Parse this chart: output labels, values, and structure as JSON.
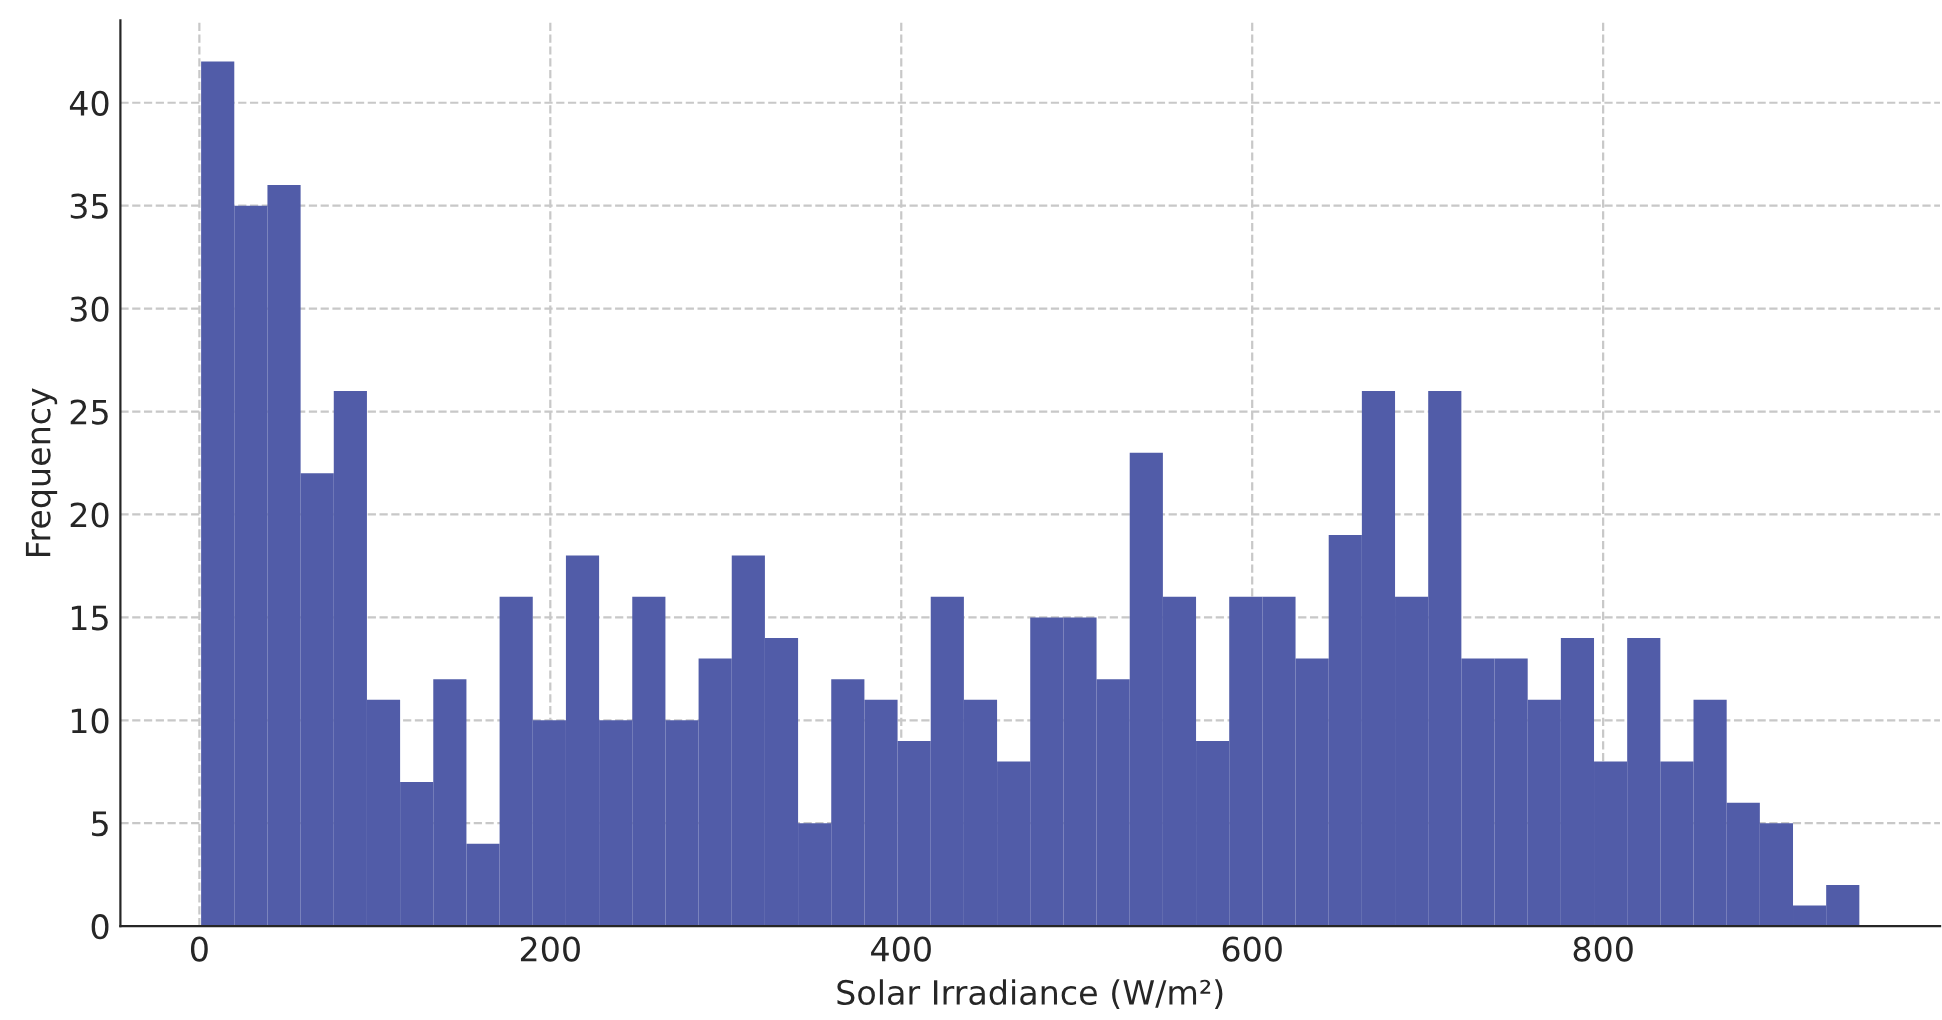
{
  "chart_data": {
    "type": "histogram",
    "xlabel": "Solar Irradiance (W/m²)",
    "ylabel": "Frequency",
    "color": "#515ca8",
    "bins": [
      1,
      19.9,
      38.8,
      57.7,
      76.6,
      95.5,
      114.4,
      133.3,
      152.2,
      171.1,
      190,
      208.9,
      227.8,
      246.7,
      265.6,
      284.5,
      303.4,
      322.3,
      341.2,
      360.1,
      379,
      397.9,
      416.8,
      435.7,
      454.6,
      473.5,
      492.4,
      511.3,
      530.2,
      549.1,
      568,
      586.9,
      605.8,
      624.7,
      643.6,
      662.5,
      681.4,
      700.3,
      719.2,
      738.1,
      757,
      775.9,
      794.8,
      813.7,
      832.6,
      851.5,
      870.4,
      889.3,
      908.2,
      927.1,
      946
    ],
    "values": [
      42,
      35,
      36,
      22,
      26,
      11,
      7,
      12,
      4,
      16,
      10,
      18,
      10,
      16,
      10,
      13,
      18,
      14,
      5,
      12,
      11,
      9,
      16,
      11,
      8,
      15,
      15,
      12,
      23,
      16,
      9,
      16,
      16,
      13,
      19,
      26,
      16,
      26,
      13,
      13,
      11,
      14,
      8,
      14,
      8,
      11,
      6,
      5,
      1,
      2
    ],
    "xlim": [
      -45,
      992
    ],
    "xticks": [
      0,
      200,
      400,
      600,
      800
    ],
    "ylim": [
      0,
      44
    ],
    "yticks": [
      0,
      5,
      10,
      15,
      20,
      25,
      30,
      35,
      40
    ],
    "grid": true
  }
}
